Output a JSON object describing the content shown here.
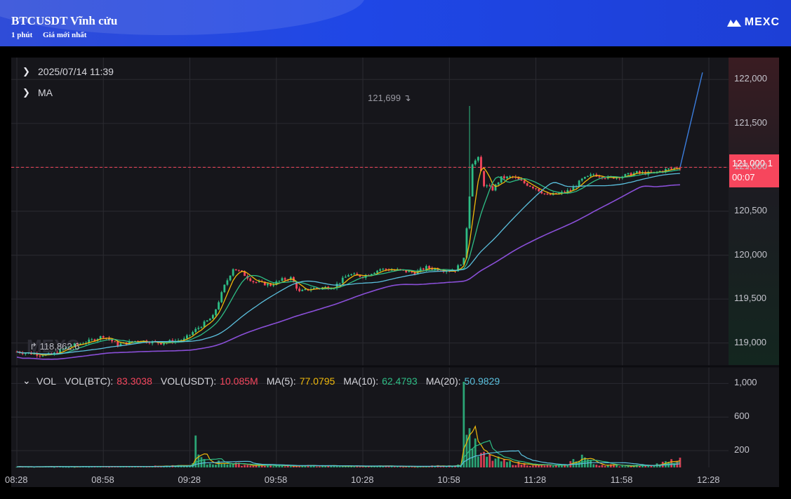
{
  "header": {
    "title": "BTCUSDT Vĩnh cửu",
    "interval": "1 phút",
    "price_type": "Giá mới nhất",
    "brand": "MEXC"
  },
  "legend": {
    "datetime": "2025/07/14 11:39",
    "ma_label": "MA"
  },
  "volume_legend": {
    "vol": "VOL",
    "vol_btc_label": "VOL(BTC):",
    "vol_btc_value": "83.3038",
    "vol_usdt_label": "VOL(USDT):",
    "vol_usdt_value": "10.085M",
    "ma5_label": "MA(5):",
    "ma5_value": "77.0795",
    "ma10_label": "MA(10):",
    "ma10_value": "62.4793",
    "ma20_label": "MA(20):",
    "ma20_value": "50.9829"
  },
  "price_tag": {
    "price": "121,000.1",
    "countdown": "00:07"
  },
  "annotations": {
    "high": "121,699",
    "low": "118,862.6"
  },
  "colors": {
    "up": "#2ebd85",
    "down": "#f6465d",
    "ma5": "#f0b90b",
    "ma10": "#2ebd85",
    "ma20": "#5bc0de",
    "ma_long": "#8a4fd8",
    "projection": "#3b7ddd",
    "background": "#16161b"
  },
  "chart_data": {
    "type": "candlestick",
    "price_axis": {
      "ticks": [
        "122,000",
        "121,500",
        "121,000",
        "120,500",
        "120,000",
        "119,500",
        "119,000"
      ],
      "range": [
        118750,
        122250
      ]
    },
    "volume_axis": {
      "ticks": [
        "1,000",
        "600",
        "200"
      ],
      "range": [
        0,
        1120
      ]
    },
    "time_axis": {
      "ticks": [
        "08:28",
        "08:58",
        "09:28",
        "09:58",
        "10:28",
        "10:58",
        "11:28",
        "11:58",
        "12:28"
      ]
    },
    "last_price": 121000.1,
    "high": 121699,
    "low": 118862.6,
    "price_path": [
      [
        0,
        118900
      ],
      [
        8,
        118870
      ],
      [
        12,
        118862.6
      ],
      [
        18,
        118960
      ],
      [
        25,
        119020
      ],
      [
        30,
        119080
      ],
      [
        35,
        118980
      ],
      [
        42,
        119030
      ],
      [
        50,
        119000
      ],
      [
        58,
        119040
      ],
      [
        62,
        119150
      ],
      [
        68,
        119300
      ],
      [
        72,
        119650
      ],
      [
        75,
        119850
      ],
      [
        78,
        119800
      ],
      [
        82,
        119700
      ],
      [
        88,
        119660
      ],
      [
        92,
        119720
      ],
      [
        95,
        119740
      ],
      [
        98,
        119580
      ],
      [
        102,
        119620
      ],
      [
        110,
        119640
      ],
      [
        115,
        119780
      ],
      [
        120,
        119760
      ],
      [
        126,
        119840
      ],
      [
        132,
        119830
      ],
      [
        138,
        119800
      ],
      [
        142,
        119860
      ],
      [
        148,
        119830
      ],
      [
        152,
        119830
      ],
      [
        155,
        119950
      ],
      [
        158,
        121050
      ],
      [
        160,
        121100
      ],
      [
        162,
        120800
      ],
      [
        165,
        120750
      ],
      [
        168,
        120880
      ],
      [
        172,
        120890
      ],
      [
        176,
        120820
      ],
      [
        180,
        120760
      ],
      [
        184,
        120680
      ],
      [
        188,
        120700
      ],
      [
        192,
        120740
      ],
      [
        196,
        120860
      ],
      [
        200,
        120920
      ],
      [
        205,
        120880
      ],
      [
        210,
        120900
      ],
      [
        215,
        120940
      ],
      [
        220,
        120930
      ],
      [
        226,
        120980
      ],
      [
        230,
        121000.1
      ]
    ],
    "price_path_x_unit": "minutes since 08:28",
    "volume_points": [
      [
        0,
        8
      ],
      [
        40,
        12
      ],
      [
        60,
        20
      ],
      [
        62,
        160
      ],
      [
        66,
        40
      ],
      [
        70,
        60
      ],
      [
        80,
        30
      ],
      [
        90,
        22
      ],
      [
        100,
        20
      ],
      [
        120,
        15
      ],
      [
        140,
        10
      ],
      [
        154,
        30
      ],
      [
        155,
        1020
      ],
      [
        157,
        400
      ],
      [
        160,
        150
      ],
      [
        170,
        60
      ],
      [
        180,
        30
      ],
      [
        190,
        20
      ],
      [
        196,
        140
      ],
      [
        200,
        40
      ],
      [
        210,
        20
      ],
      [
        220,
        30
      ],
      [
        230,
        83.3
      ]
    ]
  }
}
